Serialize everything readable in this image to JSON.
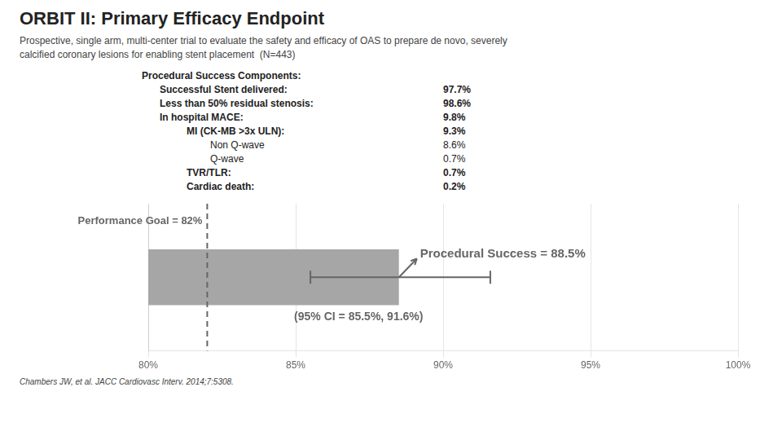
{
  "chart_data": {
    "type": "bar",
    "orientation": "horizontal",
    "title": "ORBIT II: Primary Efficacy Endpoint",
    "subtitle": "Prospective, single arm, multi-center trial to evaluate the safety and efficacy of OAS to prepare de novo, severely\ncalcified coronary lesions for enabling stent placement  (N=443)",
    "table": [
      {
        "label": "Procedural Success Components:"
      },
      {
        "label": "Successful Stent delivered:",
        "value": "97.7%"
      },
      {
        "label": "Less than 50% residual stenosis:",
        "value": "98.6%"
      },
      {
        "label": "In hospital MACE:",
        "value": "9.8%"
      },
      {
        "label": "MI (CK-MB >3x ULN):",
        "value": "9.3%"
      },
      {
        "label": "Non Q-wave",
        "value": "8.6%"
      },
      {
        "label": "Q-wave",
        "value": "0.7%"
      },
      {
        "label": "TVR/TLR:",
        "value": "0.7%"
      },
      {
        "label": "Cardiac death:",
        "value": "0.2%"
      }
    ],
    "categories": [
      null
    ],
    "values": [
      88.5
    ],
    "value_labels": [
      "Procedural Success = 88.5%"
    ],
    "data_labels": true,
    "error_low": [
      85.5
    ],
    "error_high": [
      91.6
    ],
    "error_label": "(95% CI = 85.5%, 91.6%)",
    "reference_line": {
      "value": 82,
      "label": "Performance Goal = 82%"
    },
    "color": "#a6a6a6",
    "xlim": [
      80,
      100
    ],
    "xticks": [
      {
        "value": 80,
        "label": "80%"
      },
      {
        "value": 85,
        "label": "85%"
      },
      {
        "value": 90,
        "label": "90%"
      },
      {
        "value": 95,
        "label": "95%"
      },
      {
        "value": 100,
        "label": "100%"
      }
    ],
    "grid": true,
    "tick_labels": "x",
    "footnote": "Chambers JW, et al. JACC Cardiovasc Interv. 2014;7:5308."
  }
}
